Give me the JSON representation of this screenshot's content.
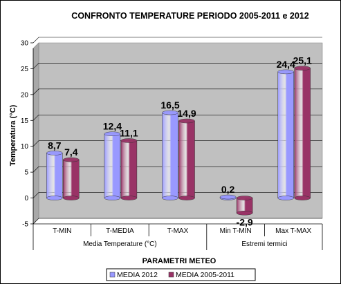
{
  "chart_data": {
    "type": "bar",
    "title": "CONFRONTO TEMPERATURE PERIODO 2005-2011 e 2012",
    "xlabel": "PARAMETRI METEO",
    "ylabel": "Temperatura (°C)",
    "ylim": [
      -5,
      30
    ],
    "yticks": [
      "-5",
      "0",
      "5",
      "10",
      "15",
      "20",
      "25",
      "30"
    ],
    "grid": true,
    "legend_position": "bottom",
    "categories": [
      "T-MIN",
      "T-MEDIA",
      "T-MAX",
      "Min T-MIN",
      "Max T-MAX"
    ],
    "groups": [
      {
        "label": "Media Temperature (°C)"
      },
      {
        "label": "Estremi termici"
      }
    ],
    "series": [
      {
        "name": "MEDIA 2012",
        "color": "#9999ff",
        "values": [
          8.7,
          12.4,
          16.5,
          0.2,
          24.4
        ],
        "labels": [
          "8,7",
          "12,4",
          "16,5",
          "0,2",
          "24,4"
        ]
      },
      {
        "name": "MEDIA 2005-2011",
        "color": "#993366",
        "values": [
          7.4,
          11.1,
          14.9,
          -2.9,
          25.1
        ],
        "labels": [
          "7,4",
          "11,1",
          "14,9",
          "-2,9",
          "25,1"
        ]
      }
    ]
  }
}
